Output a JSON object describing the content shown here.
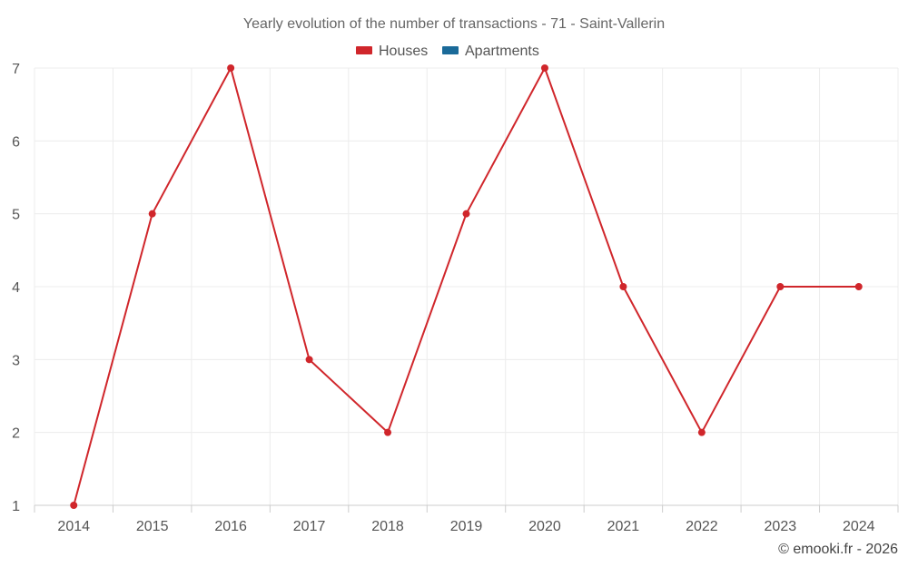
{
  "chart_data": {
    "type": "line",
    "title": "Yearly evolution of the number of transactions - 71 - Saint-Vallerin",
    "x": [
      "2014",
      "2015",
      "2016",
      "2017",
      "2018",
      "2019",
      "2020",
      "2021",
      "2022",
      "2023",
      "2024"
    ],
    "yticks": [
      1,
      2,
      3,
      4,
      5,
      6,
      7
    ],
    "ylim": [
      1,
      7
    ],
    "grid": true,
    "legend_position": "top-center",
    "legend": [
      {
        "name": "Houses",
        "color": "#d0262b"
      },
      {
        "name": "Apartments",
        "color": "#1a6a99"
      }
    ],
    "series": [
      {
        "name": "Houses",
        "color": "#d0262b",
        "values": [
          1,
          5,
          7,
          3,
          2,
          5,
          7,
          4,
          2,
          4,
          4
        ]
      }
    ]
  },
  "credit": "© emooki.fr - 2026"
}
